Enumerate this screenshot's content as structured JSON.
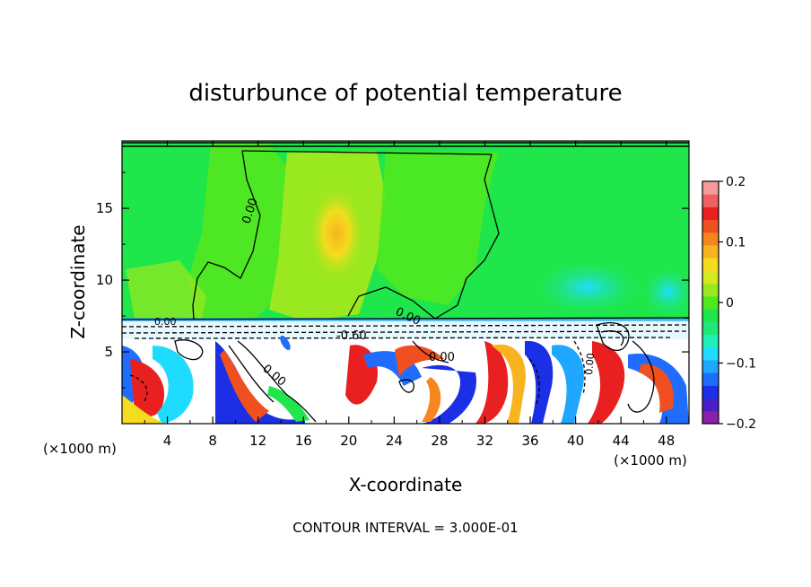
{
  "chart_data": {
    "type": "heatmap",
    "title": "disturbunce of potential temperature",
    "xlabel": "X-coordinate",
    "ylabel": "Z-coordinate",
    "xunit_left": "(×1000 m)",
    "xunit_right": "(×1000 m)",
    "footer": "CONTOUR INTERVAL = 3.000E-01",
    "xlim": [
      0,
      50
    ],
    "ylim": [
      0,
      19.7
    ],
    "x_ticks": [
      4,
      8,
      12,
      16,
      20,
      24,
      28,
      32,
      36,
      40,
      44,
      48
    ],
    "x_tick_labels": [
      "4",
      "8",
      "12",
      "16",
      "20",
      "24",
      "28",
      "32",
      "36",
      "40",
      "44",
      "48"
    ],
    "y_ticks": [
      5,
      10,
      15
    ],
    "y_tick_labels": [
      "5",
      "10",
      "15"
    ],
    "colorbar": {
      "range": [
        -0.2,
        0.2
      ],
      "tick_labels": [
        "0.2",
        "0.1",
        "0",
        "−0.1",
        "−0.2"
      ],
      "tick_values": [
        0.2,
        0.1,
        0,
        -0.1,
        -0.2
      ],
      "colors": [
        "#8a1fa8",
        "#4b1fc8",
        "#1a2fe6",
        "#1f6cff",
        "#1fa6ff",
        "#1fdcff",
        "#1ff0b8",
        "#1fe87a",
        "#1fe64a",
        "#52e81f",
        "#9ae81f",
        "#d4ea1f",
        "#f4dc1f",
        "#f8b41f",
        "#f8861f",
        "#f0501f",
        "#e8201f",
        "#f06060",
        "#f89a9a"
      ]
    },
    "contour_labels": [
      "0.00",
      "-0.60",
      "0.00",
      "0.00",
      "0.00",
      "0.00",
      "0.00"
    ],
    "grid": false
  }
}
